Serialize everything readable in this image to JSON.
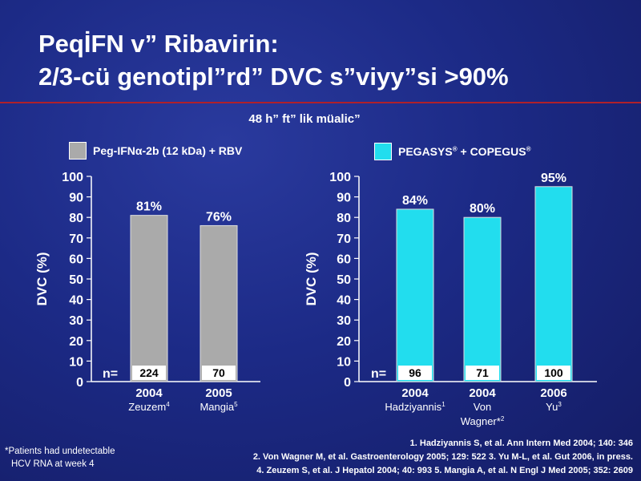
{
  "title": {
    "line1": "PeqİFN v” Ribavirin:",
    "line2": "2/3-cü genotipl”rd” DVC s”viyy”si >90%"
  },
  "subtitle": "48 h” ft” lik müalic”",
  "legend": {
    "left": {
      "label": "Peg-IFNα-2b (12 kDa) + RBV",
      "color": "#aaaaaa"
    },
    "right": {
      "label_main": "PEGASYS",
      "label_mid": " + COPEGUS",
      "reg": "®",
      "color": "#22ddee"
    }
  },
  "chart_data": [
    {
      "type": "bar",
      "ylabel": "DVC (%)",
      "ylim": [
        0,
        100
      ],
      "yticks": [
        0,
        10,
        20,
        30,
        40,
        50,
        60,
        70,
        80,
        90,
        100
      ],
      "color": "#aaaaaa",
      "n_label": "n=",
      "bars": [
        {
          "year": "2004",
          "study": "Zeuzem",
          "sup": "4",
          "value": 81,
          "value_label": "81%",
          "n": "224"
        },
        {
          "year": "2005",
          "study": "Mangia",
          "sup": "5",
          "value": 76,
          "value_label": "76%",
          "n": "70"
        }
      ]
    },
    {
      "type": "bar",
      "ylabel": "DVC (%)",
      "ylim": [
        0,
        100
      ],
      "yticks": [
        0,
        10,
        20,
        30,
        40,
        50,
        60,
        70,
        80,
        90,
        100
      ],
      "color": "#22ddee",
      "n_label": "n=",
      "bars": [
        {
          "year": "2004",
          "study": "Hadziyannis",
          "sup": "1",
          "value": 84,
          "value_label": "84%",
          "n": "96"
        },
        {
          "year": "2004",
          "study": "Von\nWagner*",
          "sup": "2",
          "value": 80,
          "value_label": "80%",
          "n": "71"
        },
        {
          "year": "2006",
          "study": "Yu",
          "sup": "3",
          "value": 95,
          "value_label": "95%",
          "n": "100"
        }
      ]
    }
  ],
  "footnote": {
    "line1": "*Patients had undetectable",
    "line2": "HCV RNA at week 4"
  },
  "references": [
    "1. Hadziyannis S, et al. Ann Intern Med 2004; 140: 346",
    "2. Von Wagner M, et al. Gastroenterology 2005; 129: 522 3. Yu M-L, et al. Gut 2006, in press.",
    "4. Zeuzem S, et al. J Hepatol 2004; 40: 993  5. Mangia A, et al. N Engl J Med 2005; 352: 2609"
  ]
}
